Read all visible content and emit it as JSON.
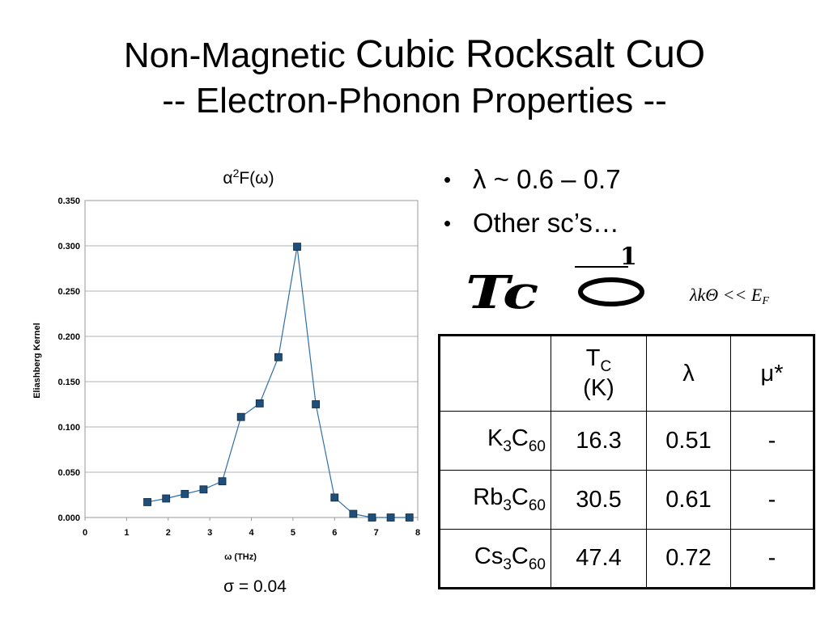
{
  "slide": {
    "title_part1": "Non-Magnetic ",
    "title_part2": "Cubic Rocksalt CuO",
    "title_line2": "-- Electron-Phonon Properties --"
  },
  "bullets": [
    {
      "text": "λ ~ 0.6 – 0.7"
    },
    {
      "text": "Other sc’s…"
    }
  ],
  "inequality": {
    "main": "λkΘ << E",
    "sub": "F"
  },
  "formula_image": {
    "main": "Tc",
    "num": "1"
  },
  "chart_data": {
    "type": "scatter",
    "title_prefix": "α",
    "title_sup": "2",
    "title_suffix": "F(ω)",
    "xlabel": "ω (THz)",
    "ylabel": "Eliashberg Kernel",
    "xlim": [
      0,
      8
    ],
    "ylim": [
      0,
      0.35
    ],
    "xticks": [
      "0",
      "1",
      "2",
      "3",
      "4",
      "5",
      "6",
      "7",
      "8"
    ],
    "yticks": [
      "0.000",
      "0.050",
      "0.100",
      "0.150",
      "0.200",
      "0.250",
      "0.300",
      "0.350"
    ],
    "grid": "horizontal",
    "series": [
      {
        "color": "#2f6eaa",
        "marker_fill": "#1f4e79",
        "x": [
          1.5,
          1.95,
          2.4,
          2.85,
          3.3,
          3.75,
          4.2,
          4.65,
          5.1,
          5.55,
          6.0,
          6.45,
          6.9,
          7.35,
          7.8
        ],
        "y": [
          0.017,
          0.021,
          0.026,
          0.031,
          0.04,
          0.111,
          0.126,
          0.177,
          0.299,
          0.125,
          0.022,
          0.004,
          0.0,
          0.0,
          0.0
        ]
      }
    ],
    "annotation": "σ = 0.04"
  },
  "table": {
    "header": {
      "tc_main": "T",
      "tc_sub": "C",
      "tc_unit": "(K)",
      "lambda": "λ",
      "mu": "μ*"
    },
    "rows": [
      {
        "pre": "K",
        "s1": "3",
        "mid": "C",
        "s2": "60",
        "tc": "16.3",
        "lambda": "0.51",
        "mu": "-"
      },
      {
        "pre": "Rb",
        "s1": "3",
        "mid": "C",
        "s2": "60",
        "tc": "30.5",
        "lambda": "0.61",
        "mu": "-"
      },
      {
        "pre": "Cs",
        "s1": "3",
        "mid": "C",
        "s2": "60",
        "tc": "47.4",
        "lambda": "0.72",
        "mu": "-"
      }
    ]
  }
}
